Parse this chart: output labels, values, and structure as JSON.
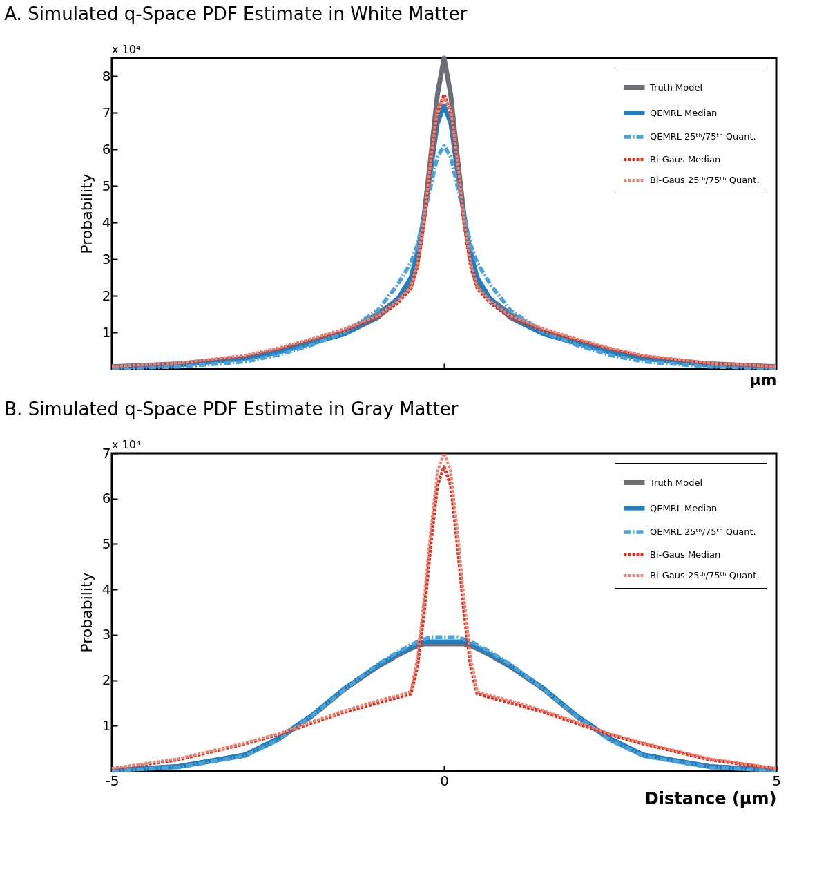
{
  "chart_data": [
    {
      "type": "line",
      "title": "A. Simulated q-Space PDF Estimate in White Matter",
      "xlabel": "μm",
      "ylabel": "Probability",
      "annotations": [
        "x 10⁴"
      ],
      "x": [
        -5,
        -4,
        -3,
        -2.5,
        -2,
        -1.5,
        -1,
        -0.7,
        -0.5,
        -0.4,
        -0.3,
        -0.2,
        -0.1,
        0,
        0.1,
        0.2,
        0.3,
        0.4,
        0.5,
        0.7,
        1,
        1.5,
        2,
        2.5,
        3,
        4,
        5
      ],
      "xlim": [
        -5,
        5
      ],
      "xticks": [
        {
          "value": 0,
          "label": null
        }
      ],
      "ylim": [
        0,
        8.5
      ],
      "yticks": [
        1,
        2,
        3,
        4,
        5,
        6,
        7,
        8
      ],
      "tick_labels": "y",
      "grid": false,
      "legend": "top right",
      "marker": "none",
      "series": [
        {
          "name": "Truth Model",
          "color": "#6e6e78",
          "line_style": "solid",
          "values": [
            0.06,
            0.14,
            0.3,
            0.5,
            0.75,
            1.0,
            1.5,
            1.9,
            2.3,
            3.0,
            4.2,
            5.8,
            7.5,
            8.5,
            7.5,
            5.8,
            4.2,
            3.0,
            2.3,
            1.9,
            1.5,
            1.0,
            0.75,
            0.5,
            0.3,
            0.14,
            0.06
          ]
        },
        {
          "name": "QEMRL Median",
          "color": "#1f7fc0",
          "line_style": "solid",
          "values": [
            0.04,
            0.1,
            0.28,
            0.45,
            0.7,
            0.95,
            1.4,
            1.9,
            2.5,
            3.2,
            4.2,
            5.4,
            6.7,
            7.2,
            6.7,
            5.4,
            4.2,
            3.2,
            2.5,
            1.9,
            1.4,
            0.95,
            0.7,
            0.45,
            0.28,
            0.1,
            0.04
          ]
        },
        {
          "name": "QEMRL 25ᵗʰ/75ᵗʰ Quant.",
          "color": "#4aa3d8",
          "line_style": "dashed",
          "values": [
            0.02,
            0.06,
            0.2,
            0.38,
            0.65,
            1.0,
            1.6,
            2.3,
            2.9,
            3.4,
            4.2,
            5.0,
            5.8,
            6.1,
            5.8,
            5.0,
            4.2,
            3.4,
            2.9,
            2.3,
            1.6,
            1.0,
            0.65,
            0.38,
            0.2,
            0.06,
            0.02
          ]
        },
        {
          "name": "Bi-Gaus Median",
          "color": "#e03020",
          "line_style": "dotted",
          "values": [
            0.06,
            0.15,
            0.35,
            0.55,
            0.8,
            1.05,
            1.4,
            1.8,
            2.2,
            2.8,
            4.0,
            5.6,
            7.0,
            7.5,
            7.0,
            5.6,
            4.0,
            2.8,
            2.2,
            1.8,
            1.4,
            1.05,
            0.8,
            0.55,
            0.35,
            0.15,
            0.06
          ]
        },
        {
          "name": "Bi-Gaus 25ᵗʰ/75ᵗʰ Quant.",
          "color": "#f08070",
          "line_style": "dotted",
          "values": [
            0.07,
            0.16,
            0.37,
            0.57,
            0.82,
            1.1,
            1.45,
            1.85,
            2.25,
            2.9,
            4.1,
            5.7,
            7.1,
            7.4,
            7.1,
            5.7,
            4.1,
            2.9,
            2.25,
            1.85,
            1.45,
            1.1,
            0.82,
            0.57,
            0.37,
            0.16,
            0.07
          ]
        }
      ]
    },
    {
      "type": "line",
      "title": "B. Simulated q-Space PDF Estimate in Gray Matter",
      "xlabel": "Distance (μm)",
      "ylabel": "Probability",
      "annotations": [
        "x 10⁴"
      ],
      "x": [
        -5,
        -4,
        -3,
        -2.5,
        -2,
        -1.5,
        -1,
        -0.7,
        -0.5,
        -0.4,
        -0.3,
        -0.2,
        -0.1,
        0,
        0.1,
        0.2,
        0.3,
        0.4,
        0.5,
        0.7,
        1,
        1.5,
        2,
        2.5,
        3,
        4,
        5
      ],
      "xlim": [
        -5,
        5
      ],
      "xticks": [
        -5,
        0,
        5
      ],
      "ylim": [
        0,
        7
      ],
      "yticks": [
        1,
        2,
        3,
        4,
        5,
        6,
        7
      ],
      "grid": false,
      "legend": "top right",
      "marker": "none",
      "series": [
        {
          "name": "Truth Model",
          "color": "#6e6e78",
          "line_style": "solid",
          "values": [
            0.02,
            0.1,
            0.35,
            0.7,
            1.2,
            1.8,
            2.3,
            2.55,
            2.7,
            2.75,
            2.8,
            2.8,
            2.8,
            2.8,
            2.8,
            2.8,
            2.8,
            2.75,
            2.7,
            2.55,
            2.3,
            1.8,
            1.2,
            0.7,
            0.35,
            0.1,
            0.02
          ]
        },
        {
          "name": "QEMRL Median",
          "color": "#1f7fc0",
          "line_style": "solid",
          "values": [
            0.02,
            0.1,
            0.36,
            0.72,
            1.22,
            1.82,
            2.32,
            2.58,
            2.72,
            2.8,
            2.85,
            2.85,
            2.85,
            2.85,
            2.85,
            2.85,
            2.85,
            2.8,
            2.72,
            2.58,
            2.32,
            1.82,
            1.22,
            0.72,
            0.36,
            0.1,
            0.02
          ]
        },
        {
          "name": "QEMRL 25ᵗʰ/75ᵗʰ Quant.",
          "color": "#4aa3d8",
          "line_style": "dashed",
          "values": [
            0.01,
            0.08,
            0.33,
            0.68,
            1.2,
            1.8,
            2.35,
            2.62,
            2.78,
            2.85,
            2.9,
            2.95,
            2.95,
            2.95,
            2.95,
            2.95,
            2.9,
            2.85,
            2.78,
            2.62,
            2.35,
            1.8,
            1.2,
            0.68,
            0.33,
            0.08,
            0.01
          ]
        },
        {
          "name": "Bi-Gaus Median",
          "color": "#e03020",
          "line_style": "dotted",
          "values": [
            0.05,
            0.25,
            0.6,
            0.8,
            1.05,
            1.3,
            1.5,
            1.62,
            1.7,
            2.3,
            3.5,
            5.0,
            6.3,
            6.7,
            6.3,
            5.0,
            3.5,
            2.3,
            1.7,
            1.62,
            1.5,
            1.3,
            1.05,
            0.8,
            0.6,
            0.25,
            0.05
          ]
        },
        {
          "name": "Bi-Gaus 25ᵗʰ/75ᵗʰ Quant.",
          "color": "#f08070",
          "line_style": "dotted",
          "values": [
            0.06,
            0.27,
            0.62,
            0.82,
            1.08,
            1.33,
            1.55,
            1.66,
            1.75,
            2.5,
            3.8,
            5.3,
            6.6,
            7.0,
            6.6,
            5.3,
            3.8,
            2.5,
            1.75,
            1.66,
            1.55,
            1.33,
            1.08,
            0.82,
            0.62,
            0.27,
            0.06
          ]
        }
      ]
    }
  ]
}
